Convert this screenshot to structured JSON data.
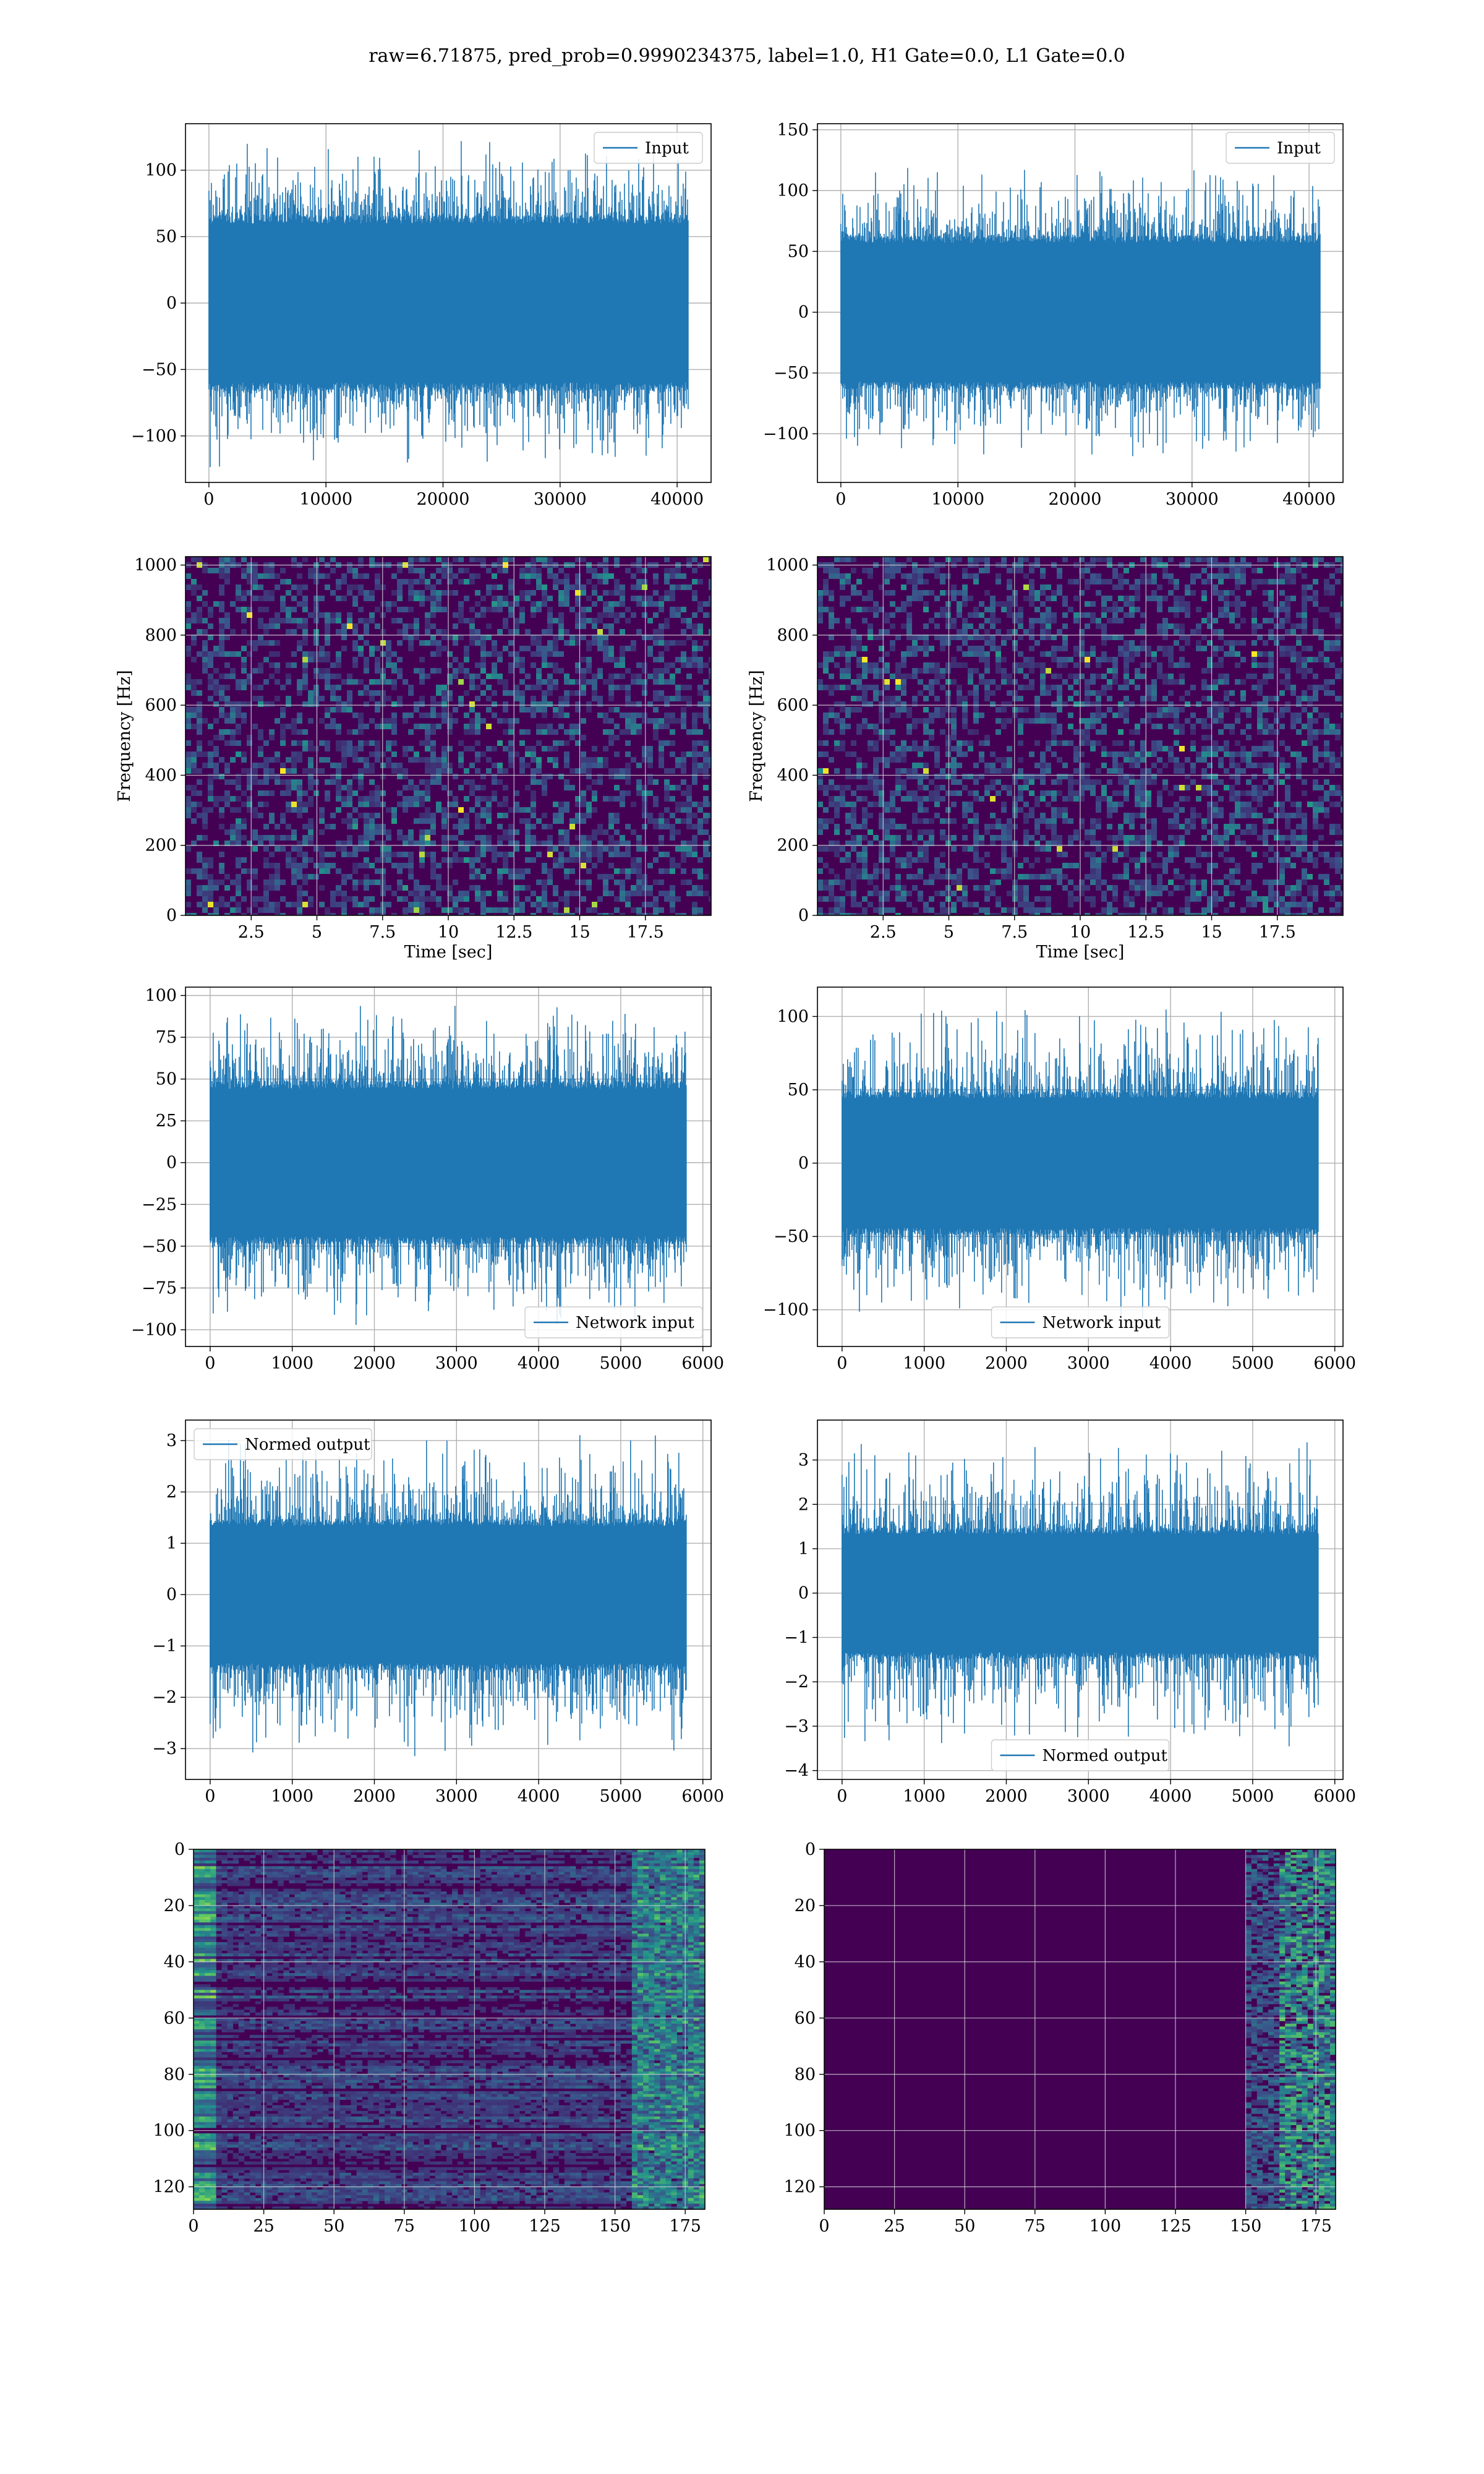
{
  "figure": {
    "title": "raw=6.71875, pred_prob=0.9990234375, label=1.0, H1 Gate=0.0, L1 Gate=0.0"
  },
  "colors": {
    "line": "#1f77b4",
    "grid": "#b0b0b0",
    "viridis_low": "#440154",
    "viridis_mid": "#21918c",
    "viridis_high": "#fde725"
  },
  "chart_data": [
    {
      "id": "input-h1",
      "type": "line",
      "legend": "Input",
      "legend_loc": "upper right",
      "xlim": [
        -2000,
        42900
      ],
      "ylim": [
        -135,
        135
      ],
      "xticks": [
        0,
        10000,
        20000,
        30000,
        40000
      ],
      "yticks": [
        -100,
        -50,
        0,
        50,
        100
      ],
      "x_range": [
        0,
        40960
      ],
      "envelope": 65,
      "peak": 125
    },
    {
      "id": "input-l1",
      "type": "line",
      "legend": "Input",
      "legend_loc": "upper right",
      "xlim": [
        -2000,
        42900
      ],
      "ylim": [
        -140,
        155
      ],
      "xticks": [
        0,
        10000,
        20000,
        30000,
        40000
      ],
      "yticks": [
        -100,
        -50,
        0,
        50,
        100,
        150
      ],
      "x_range": [
        0,
        40960
      ],
      "envelope": 62,
      "peak": 122
    },
    {
      "id": "spectrogram-h1",
      "type": "heatmap",
      "xlabel": "Time [sec]",
      "ylabel": "Frequency [Hz]",
      "xlim": [
        0,
        20
      ],
      "ylim": [
        0,
        1024
      ],
      "xticks": [
        2.5,
        5.0,
        7.5,
        10.0,
        12.5,
        15.0,
        17.5
      ],
      "yticks": [
        0,
        200,
        400,
        600,
        800,
        1000
      ]
    },
    {
      "id": "spectrogram-l1",
      "type": "heatmap",
      "xlabel": "Time [sec]",
      "ylabel": "Frequency [Hz]",
      "xlim": [
        0,
        20
      ],
      "ylim": [
        0,
        1024
      ],
      "xticks": [
        2.5,
        5.0,
        7.5,
        10.0,
        12.5,
        15.0,
        17.5
      ],
      "yticks": [
        0,
        200,
        400,
        600,
        800,
        1000
      ]
    },
    {
      "id": "network-input-h1",
      "type": "line",
      "legend": "Network input",
      "legend_loc": "lower right",
      "xlim": [
        -300,
        6100
      ],
      "ylim": [
        -110,
        105
      ],
      "xticks": [
        0,
        1000,
        2000,
        3000,
        4000,
        5000,
        6000
      ],
      "yticks": [
        -100,
        -75,
        -50,
        -25,
        0,
        25,
        50,
        75,
        100
      ],
      "x_range": [
        0,
        5800
      ],
      "envelope": 48,
      "peak": 98
    },
    {
      "id": "network-input-l1",
      "type": "line",
      "legend": "Network input",
      "legend_loc": "lower center",
      "xlim": [
        -300,
        6100
      ],
      "ylim": [
        -125,
        120
      ],
      "xticks": [
        0,
        1000,
        2000,
        3000,
        4000,
        5000,
        6000
      ],
      "yticks": [
        -100,
        -50,
        0,
        50,
        100
      ],
      "x_range": [
        0,
        5800
      ],
      "envelope": 48,
      "peak": 108
    },
    {
      "id": "normed-output-h1",
      "type": "line",
      "legend": "Normed output",
      "legend_loc": "upper left",
      "xlim": [
        -300,
        6100
      ],
      "ylim": [
        -3.6,
        3.4
      ],
      "xticks": [
        0,
        1000,
        2000,
        3000,
        4000,
        5000,
        6000
      ],
      "yticks": [
        -3,
        -2,
        -1,
        0,
        1,
        2,
        3
      ],
      "x_range": [
        0,
        5800
      ],
      "envelope": 1.45,
      "peak": 3.2
    },
    {
      "id": "normed-output-l1",
      "type": "line",
      "legend": "Normed output",
      "legend_loc": "lower center",
      "xlim": [
        -300,
        6100
      ],
      "ylim": [
        -4.2,
        3.9
      ],
      "xticks": [
        0,
        1000,
        2000,
        3000,
        4000,
        5000,
        6000
      ],
      "yticks": [
        -4,
        -3,
        -2,
        -1,
        0,
        1,
        2,
        3
      ],
      "x_range": [
        0,
        5800
      ],
      "envelope": 1.45,
      "peak": 3.6
    },
    {
      "id": "feature-map-h1",
      "type": "heatmap",
      "xlim": [
        0,
        182
      ],
      "ylim": [
        128,
        0
      ],
      "xticks": [
        0,
        25,
        50,
        75,
        100,
        125,
        150,
        175
      ],
      "yticks": [
        0,
        20,
        40,
        60,
        80,
        100,
        120
      ]
    },
    {
      "id": "feature-map-l1",
      "type": "heatmap",
      "xlim": [
        0,
        182
      ],
      "ylim": [
        128,
        0
      ],
      "xticks": [
        0,
        25,
        50,
        75,
        100,
        125,
        150,
        175
      ],
      "yticks": [
        0,
        20,
        40,
        60,
        80,
        100,
        120
      ]
    }
  ]
}
